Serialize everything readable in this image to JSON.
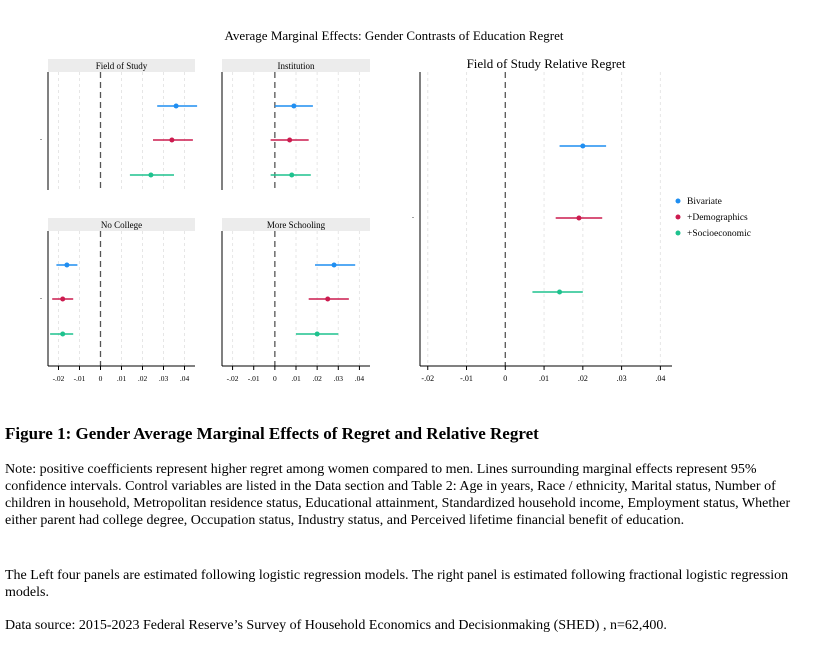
{
  "figure": {
    "suptitle": "Average Marginal Effects: Gender Contrasts of Education Regret",
    "caption_title": "Figure 1: Gender Average Marginal Effects of Regret and Relative Regret",
    "note_1": "Note: positive coefficients represent higher regret among women compared to men. Lines surrounding marginal effects represent 95% confidence intervals. Control variables are listed in the Data section and Table 2: Age in years, Race / ethnicity, Marital status, Number of children in household, Metropolitan residence status, Educational attainment, Standardized household income, Employment status, Whether either parent had college degree, Occupation status, Industry status, and Perceived lifetime financial benefit of education.",
    "note_2": "The Left four panels are estimated following logistic regression models. The right panel is estimated following fractional logistic regression models.",
    "note_3": "Data source: 2015-2023  Federal Reserve’s Survey of Household Economics and Decisionmaking (SHED) , n=62,400."
  },
  "colors": {
    "bivariate": "#1f8ef1",
    "demographics": "#cc1b4f",
    "socioeconomic": "#1ec28e",
    "zero_line": "#555555",
    "grid": "#e6e6e6",
    "strip": "#ececec"
  },
  "chart_data": [
    {
      "type": "scatter",
      "subtype": "coefficient-plot",
      "title": "Field of Study",
      "xlim": [
        -0.025,
        0.045
      ],
      "xticks": [
        -0.02,
        -0.01,
        0,
        0.01,
        0.02,
        0.03,
        0.04
      ],
      "xtick_labels": [
        "-.02",
        "-.01",
        "0",
        ".01",
        ".02",
        ".03",
        ".04"
      ],
      "ytick_labels": [
        "."
      ],
      "series": [
        {
          "name": "Bivariate",
          "value": 0.036,
          "ci": [
            0.027,
            0.046
          ]
        },
        {
          "name": "+Demographics",
          "value": 0.034,
          "ci": [
            0.025,
            0.044
          ]
        },
        {
          "name": "+Socioeconomic",
          "value": 0.024,
          "ci": [
            0.014,
            0.035
          ]
        }
      ]
    },
    {
      "type": "scatter",
      "subtype": "coefficient-plot",
      "title": "Institution",
      "xlim": [
        -0.025,
        0.045
      ],
      "xticks": [
        -0.02,
        -0.01,
        0,
        0.01,
        0.02,
        0.03,
        0.04
      ],
      "xtick_labels": [
        "-.02",
        "-.01",
        "0",
        ".01",
        ".02",
        ".03",
        ".04"
      ],
      "ytick_labels": [],
      "series": [
        {
          "name": "Bivariate",
          "value": 0.009,
          "ci": [
            0.0,
            0.018
          ]
        },
        {
          "name": "+Demographics",
          "value": 0.007,
          "ci": [
            -0.002,
            0.016
          ]
        },
        {
          "name": "+Socioeconomic",
          "value": 0.008,
          "ci": [
            -0.002,
            0.017
          ]
        }
      ]
    },
    {
      "type": "scatter",
      "subtype": "coefficient-plot",
      "title": "No College",
      "xlim": [
        -0.025,
        0.045
      ],
      "xticks": [
        -0.02,
        -0.01,
        0,
        0.01,
        0.02,
        0.03,
        0.04
      ],
      "xtick_labels": [
        "-.02",
        "-.01",
        "0",
        ".01",
        ".02",
        ".03",
        ".04"
      ],
      "ytick_labels": [
        "."
      ],
      "series": [
        {
          "name": "Bivariate",
          "value": -0.016,
          "ci": [
            -0.021,
            -0.011
          ]
        },
        {
          "name": "+Demographics",
          "value": -0.018,
          "ci": [
            -0.023,
            -0.013
          ]
        },
        {
          "name": "+Socioeconomic",
          "value": -0.018,
          "ci": [
            -0.024,
            -0.013
          ]
        }
      ]
    },
    {
      "type": "scatter",
      "subtype": "coefficient-plot",
      "title": "More Schooling",
      "xlim": [
        -0.025,
        0.045
      ],
      "xticks": [
        -0.02,
        -0.01,
        0,
        0.01,
        0.02,
        0.03,
        0.04
      ],
      "xtick_labels": [
        "-.02",
        "-.01",
        "0",
        ".01",
        ".02",
        ".03",
        ".04"
      ],
      "ytick_labels": [],
      "series": [
        {
          "name": "Bivariate",
          "value": 0.028,
          "ci": [
            0.019,
            0.038
          ]
        },
        {
          "name": "+Demographics",
          "value": 0.025,
          "ci": [
            0.016,
            0.035
          ]
        },
        {
          "name": "+Socioeconomic",
          "value": 0.02,
          "ci": [
            0.01,
            0.03
          ]
        }
      ]
    },
    {
      "type": "scatter",
      "subtype": "coefficient-plot",
      "title": "Field of Study Relative Regret",
      "xlim": [
        -0.022,
        0.043
      ],
      "xticks": [
        -0.02,
        -0.01,
        0,
        0.01,
        0.02,
        0.03,
        0.04
      ],
      "xtick_labels": [
        "-.02",
        "-.01",
        "0",
        ".01",
        ".02",
        ".03",
        ".04"
      ],
      "ytick_labels": [
        "."
      ],
      "legend_position": "right",
      "legend": [
        "Bivariate",
        "+Demographics",
        "+Socioeconomic"
      ],
      "series": [
        {
          "name": "Bivariate",
          "value": 0.02,
          "ci": [
            0.014,
            0.026
          ]
        },
        {
          "name": "+Demographics",
          "value": 0.019,
          "ci": [
            0.013,
            0.025
          ]
        },
        {
          "name": "+Socioeconomic",
          "value": 0.014,
          "ci": [
            0.007,
            0.02
          ]
        }
      ]
    }
  ]
}
